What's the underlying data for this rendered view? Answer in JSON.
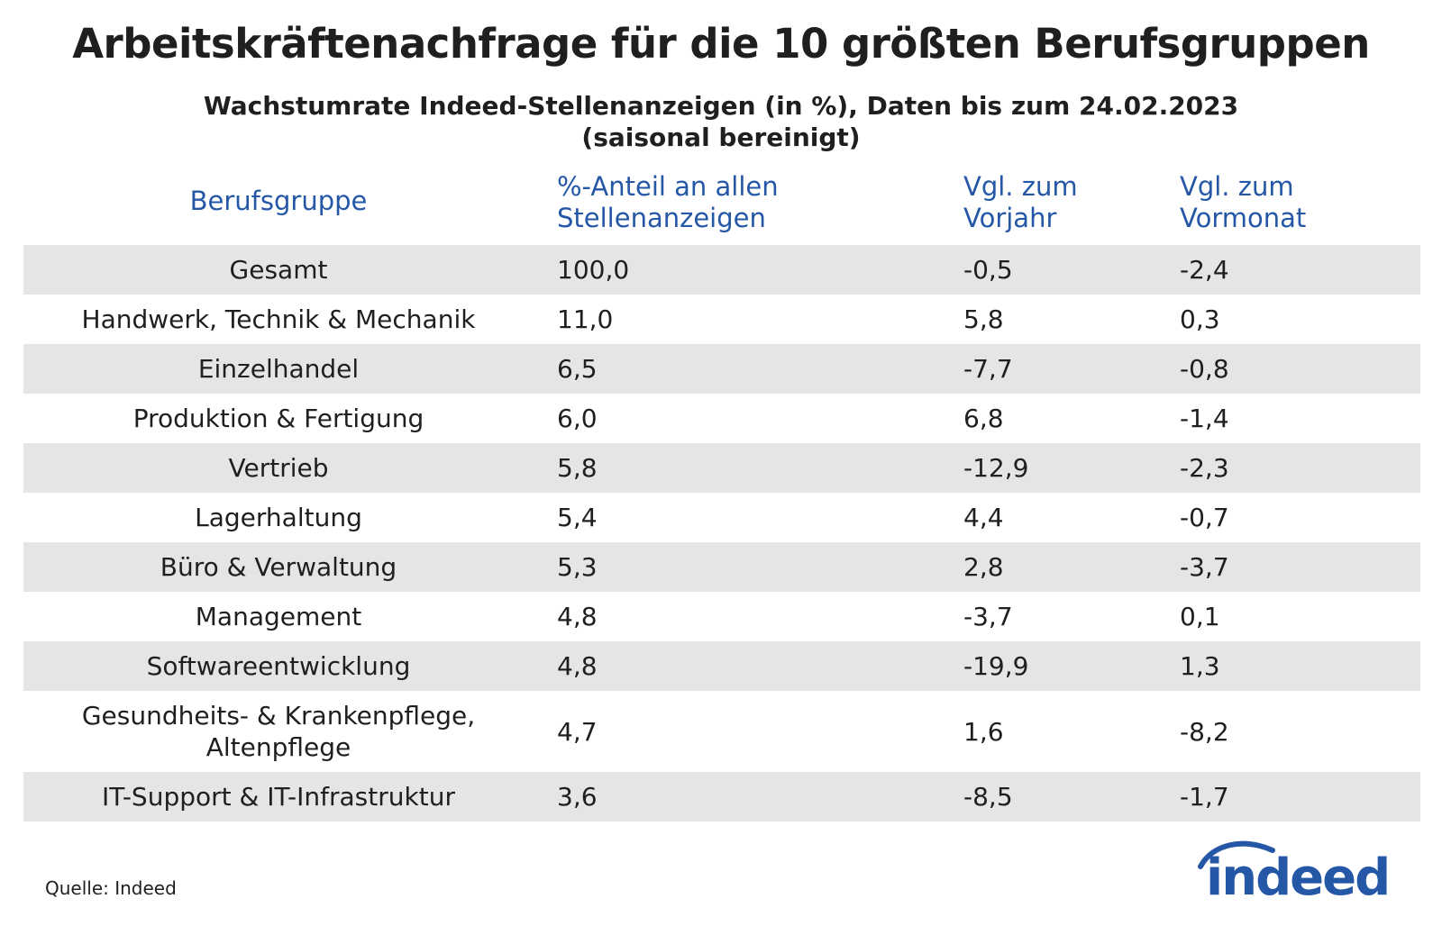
{
  "chart_data": {
    "type": "table",
    "title": "Arbeitskräftenachfrage für die 10 größten Berufsgruppen",
    "subtitle_line1": "Wachstumrate Indeed-Stellenanzeigen (in %), Daten bis zum 24.02.2023",
    "subtitle_line2": "(saisonal bereinigt)",
    "columns": [
      {
        "line1": "Berufsgruppe",
        "line2": ""
      },
      {
        "line1": "%-Anteil an allen",
        "line2": "Stellenanzeigen"
      },
      {
        "line1": "Vgl. zum",
        "line2": "Vorjahr"
      },
      {
        "line1": "Vgl. zum",
        "line2": "Vormonat"
      }
    ],
    "rows": [
      {
        "name1": "Gesamt",
        "name2": "",
        "share": "100,0",
        "yoy": "-0,5",
        "mom": "-2,4"
      },
      {
        "name1": "Handwerk, Technik & Mechanik",
        "name2": "",
        "share": "11,0",
        "yoy": "5,8",
        "mom": "0,3"
      },
      {
        "name1": "Einzelhandel",
        "name2": "",
        "share": "6,5",
        "yoy": "-7,7",
        "mom": "-0,8"
      },
      {
        "name1": "Produktion & Fertigung",
        "name2": "",
        "share": "6,0",
        "yoy": "6,8",
        "mom": "-1,4"
      },
      {
        "name1": "Vertrieb",
        "name2": "",
        "share": "5,8",
        "yoy": "-12,9",
        "mom": "-2,3"
      },
      {
        "name1": "Lagerhaltung",
        "name2": "",
        "share": "5,4",
        "yoy": "4,4",
        "mom": "-0,7"
      },
      {
        "name1": "Büro & Verwaltung",
        "name2": "",
        "share": "5,3",
        "yoy": "2,8",
        "mom": "-3,7"
      },
      {
        "name1": "Management",
        "name2": "",
        "share": "4,8",
        "yoy": "-3,7",
        "mom": "0,1"
      },
      {
        "name1": "Softwareentwicklung",
        "name2": "",
        "share": "4,8",
        "yoy": "-19,9",
        "mom": "1,3"
      },
      {
        "name1": "Gesundheits- & Krankenpflege,",
        "name2": "Altenpflege",
        "share": "4,7",
        "yoy": "1,6",
        "mom": "-8,2"
      },
      {
        "name1": "IT-Support & IT-Infrastruktur",
        "name2": "",
        "share": "3,6",
        "yoy": "-8,5",
        "mom": "-1,7"
      }
    ],
    "source": "Quelle: Indeed"
  },
  "branding": {
    "logo_text": "indeed",
    "brand_color": "#2557a7",
    "row_shade_color": "#e5e5e5"
  }
}
